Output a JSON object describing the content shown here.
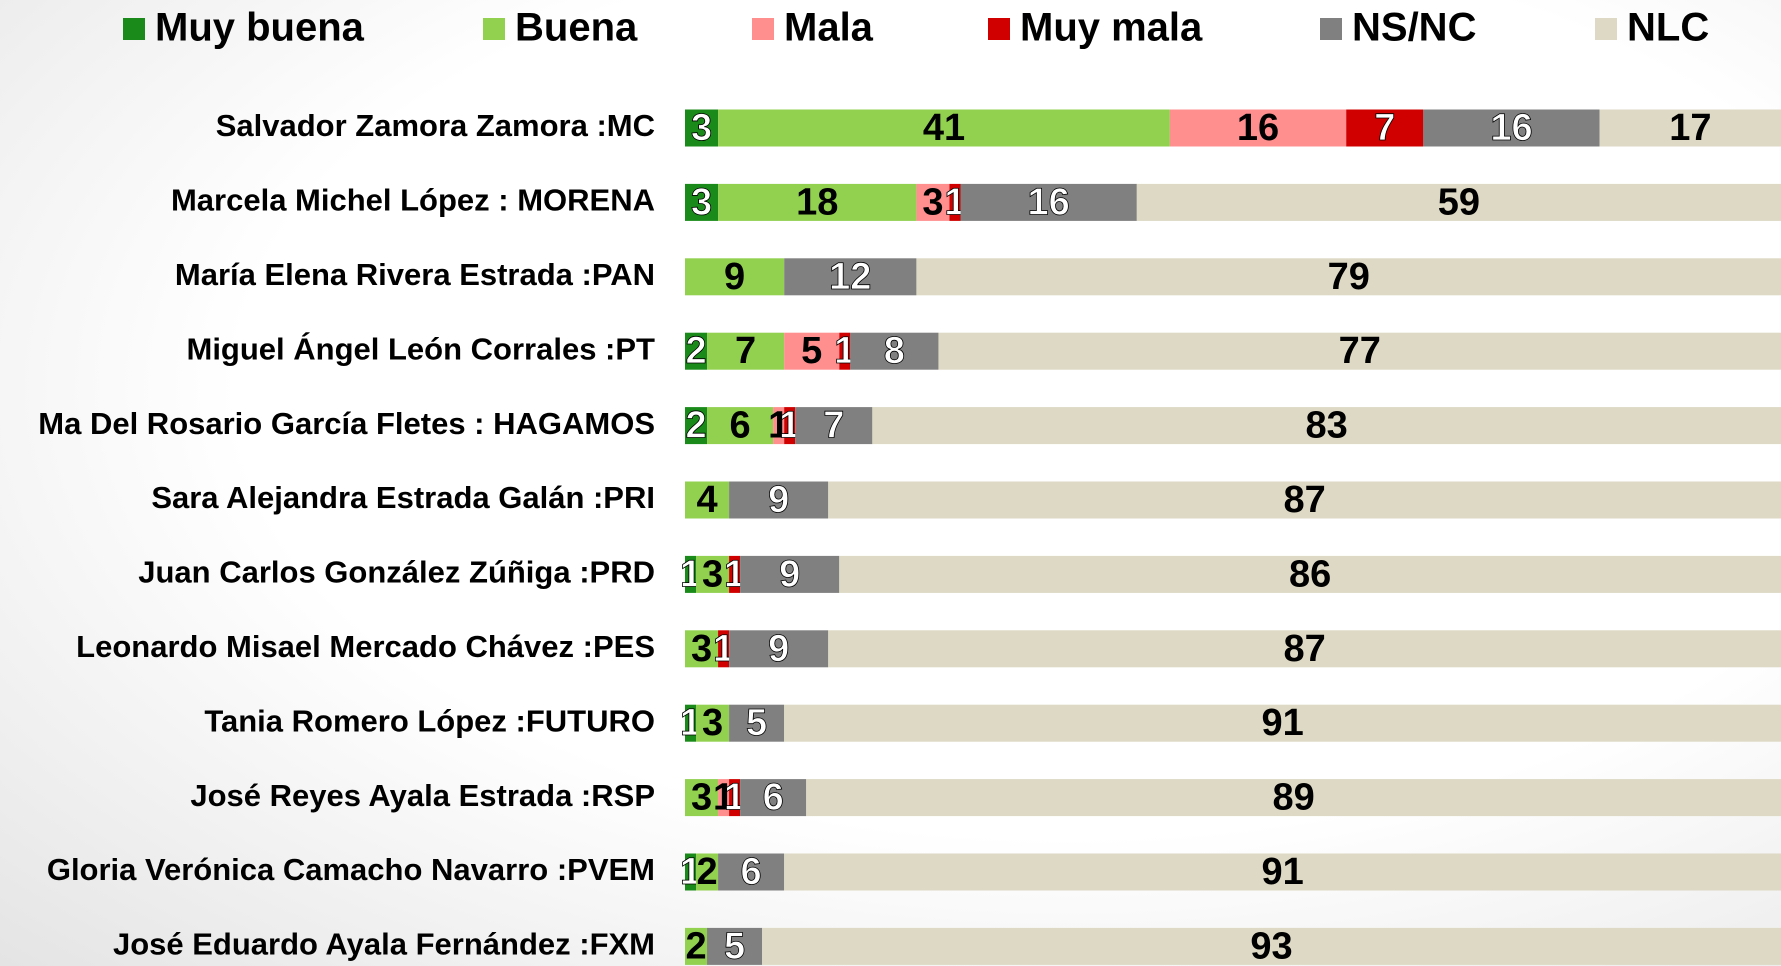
{
  "chart_data": {
    "type": "stacked_bar_horizontal",
    "categories": [
      "Salvador Zamora Zamora :MC",
      "Marcela Michel López : MORENA",
      "María Elena Rivera Estrada :PAN",
      "Miguel Ángel León Corrales :PT",
      "Ma Del Rosario García Fletes : HAGAMOS",
      "Sara Alejandra Estrada Galán :PRI",
      "Juan Carlos González Zúñiga :PRD",
      "Leonardo Misael Mercado Chávez :PES",
      "Tania Romero López :FUTURO",
      "José Reyes Ayala Estrada :RSP",
      "Gloria Verónica Camacho Navarro :PVEM",
      "José Eduardo Ayala Fernández :FXM"
    ],
    "series": [
      {
        "name": "Muy buena",
        "color": "#1a8a1a",
        "label_color": "#ffffff",
        "values": [
          3,
          3,
          null,
          2,
          2,
          null,
          1,
          null,
          1,
          null,
          1,
          null
        ]
      },
      {
        "name": "Buena",
        "color": "#92d050",
        "label_color": "#000000",
        "values": [
          41,
          18,
          9,
          7,
          6,
          4,
          3,
          3,
          3,
          3,
          2,
          2
        ]
      },
      {
        "name": "Mala",
        "color": "#ff8f8f",
        "label_color": "#000000",
        "values": [
          16,
          3,
          null,
          5,
          1,
          null,
          null,
          null,
          null,
          1,
          null,
          null
        ]
      },
      {
        "name": "Muy mala",
        "color": "#d00000",
        "label_color": "#ffffff",
        "values": [
          7,
          1,
          null,
          1,
          1,
          null,
          1,
          1,
          null,
          1,
          null,
          null
        ]
      },
      {
        "name": "NS/NC",
        "color": "#808080",
        "label_color": "#ffffff",
        "values": [
          16,
          16,
          12,
          8,
          7,
          9,
          9,
          9,
          5,
          6,
          6,
          5
        ]
      },
      {
        "name": "NLC",
        "color": "#ddd9c4",
        "label_color": "#000000",
        "values": [
          17,
          59,
          79,
          77,
          83,
          87,
          86,
          87,
          91,
          89,
          91,
          93
        ]
      }
    ],
    "xlim": [
      0,
      100
    ]
  }
}
